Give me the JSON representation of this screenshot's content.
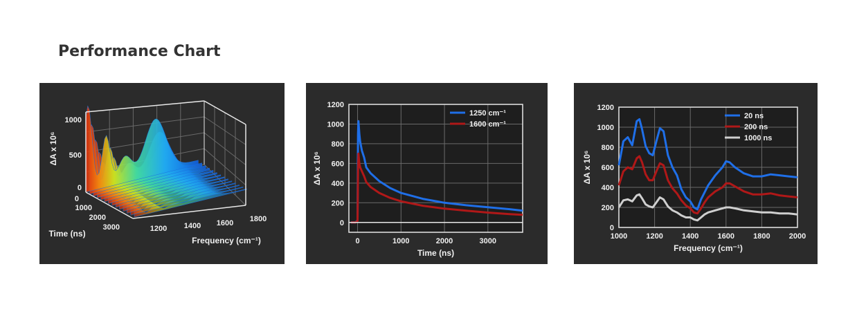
{
  "page": {
    "title": "Performance Chart"
  },
  "chart_data": [
    {
      "type": "surface3d",
      "ylabel": "ΔA x 10⁶",
      "xlabel": "Frequency (cm⁻¹)",
      "tlabel": "Time (ns)",
      "ylim": [
        0,
        1100
      ],
      "yticks": [
        0,
        500,
        1000
      ],
      "xticks": [
        1200,
        1400,
        1600,
        1800
      ],
      "tticks": [
        0,
        1000,
        2000,
        3000
      ],
      "grid": true
    },
    {
      "type": "line",
      "xlabel": "Time (ns)",
      "ylabel": "ΔA x 10⁶",
      "xlim": [
        -200,
        3800
      ],
      "ylim": [
        -100,
        1200
      ],
      "xticks": [
        0,
        1000,
        2000,
        3000
      ],
      "yticks": [
        0,
        200,
        400,
        600,
        800,
        1000,
        1200
      ],
      "grid": true,
      "legend_position": "top-right",
      "series": [
        {
          "name": "1250 cm⁻¹",
          "color": "#1f6fe8",
          "x": [
            -150,
            -50,
            0,
            10,
            20,
            40,
            60,
            100,
            150,
            200,
            300,
            500,
            750,
            1000,
            1500,
            2000,
            2500,
            3000,
            3500,
            3800
          ],
          "y": [
            0,
            0,
            20,
            900,
            1030,
            900,
            820,
            730,
            660,
            560,
            500,
            420,
            350,
            300,
            240,
            200,
            175,
            155,
            135,
            120
          ]
        },
        {
          "name": "1600 cm⁻¹",
          "color": "#b01818",
          "x": [
            -150,
            -50,
            0,
            10,
            20,
            40,
            60,
            100,
            150,
            200,
            300,
            500,
            750,
            1000,
            1500,
            2000,
            2500,
            3000,
            3500,
            3800
          ],
          "y": [
            0,
            0,
            15,
            520,
            700,
            600,
            560,
            520,
            470,
            410,
            360,
            300,
            250,
            215,
            170,
            140,
            120,
            100,
            85,
            78
          ]
        }
      ]
    },
    {
      "type": "line",
      "xlabel": "Frequency (cm⁻¹)",
      "ylabel": "ΔA x 10⁶",
      "xlim": [
        1000,
        2000
      ],
      "ylim": [
        0,
        1200
      ],
      "xticks": [
        1000,
        1200,
        1400,
        1600,
        1800,
        2000
      ],
      "yticks": [
        0,
        200,
        400,
        600,
        800,
        1000,
        1200
      ],
      "grid": true,
      "legend_position": "top-right",
      "series": [
        {
          "name": "20 ns",
          "color": "#1f6fe8",
          "x": [
            1000,
            1025,
            1050,
            1075,
            1100,
            1115,
            1130,
            1150,
            1170,
            1190,
            1210,
            1230,
            1250,
            1275,
            1300,
            1325,
            1350,
            1375,
            1400,
            1420,
            1440,
            1460,
            1480,
            1500,
            1540,
            1580,
            1600,
            1620,
            1650,
            1700,
            1750,
            1800,
            1850,
            1900,
            1950,
            2000
          ],
          "y": [
            620,
            860,
            900,
            820,
            1060,
            1080,
            980,
            810,
            740,
            720,
            860,
            990,
            960,
            720,
            600,
            520,
            380,
            300,
            260,
            200,
            180,
            280,
            350,
            420,
            520,
            600,
            660,
            650,
            600,
            540,
            510,
            510,
            530,
            520,
            510,
            500
          ]
        },
        {
          "name": "200 ns",
          "color": "#b01818",
          "x": [
            1000,
            1025,
            1050,
            1075,
            1100,
            1115,
            1130,
            1150,
            1170,
            1190,
            1210,
            1230,
            1250,
            1275,
            1300,
            1325,
            1350,
            1375,
            1400,
            1420,
            1440,
            1460,
            1480,
            1500,
            1540,
            1580,
            1600,
            1620,
            1650,
            1700,
            1750,
            1800,
            1850,
            1900,
            1950,
            2000
          ],
          "y": [
            420,
            560,
            600,
            580,
            690,
            710,
            650,
            530,
            470,
            470,
            560,
            640,
            620,
            470,
            390,
            340,
            270,
            220,
            190,
            150,
            140,
            190,
            250,
            300,
            360,
            400,
            440,
            440,
            410,
            360,
            330,
            330,
            340,
            320,
            310,
            300
          ]
        },
        {
          "name": "1000 ns",
          "color": "#cfcfcf",
          "x": [
            1000,
            1025,
            1050,
            1075,
            1100,
            1115,
            1130,
            1150,
            1170,
            1190,
            1210,
            1230,
            1250,
            1275,
            1300,
            1325,
            1350,
            1375,
            1400,
            1420,
            1440,
            1460,
            1480,
            1500,
            1540,
            1580,
            1600,
            1620,
            1650,
            1700,
            1750,
            1800,
            1850,
            1900,
            1950,
            2000
          ],
          "y": [
            200,
            270,
            280,
            260,
            320,
            330,
            290,
            230,
            210,
            200,
            250,
            300,
            280,
            210,
            170,
            150,
            120,
            100,
            100,
            80,
            70,
            100,
            130,
            150,
            170,
            190,
            200,
            200,
            190,
            170,
            160,
            150,
            150,
            140,
            140,
            130
          ]
        }
      ]
    }
  ]
}
